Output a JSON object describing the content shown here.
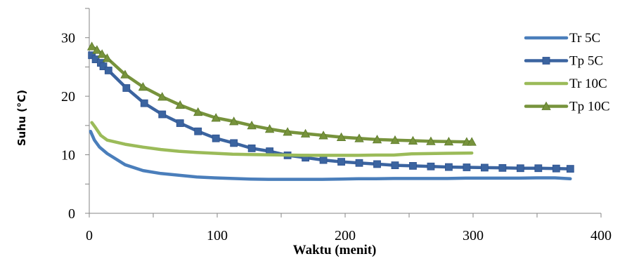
{
  "chart_data": {
    "type": "line",
    "title": "",
    "xlabel": "Waktu (menit)",
    "ylabel": "Suhu (°C)",
    "xlim": [
      0,
      400
    ],
    "ylim": [
      0,
      35
    ],
    "xticks": [
      0,
      100,
      200,
      300,
      400
    ],
    "yticks": [
      0,
      10,
      20,
      30
    ],
    "grid": false,
    "legend_position": "right",
    "series": [
      {
        "name": "Tr 5C",
        "color": "#4a7ebb",
        "marker": "none",
        "x": [
          1,
          4,
          8,
          14,
          28,
          42,
          56,
          70,
          84,
          98,
          112,
          126,
          140,
          154,
          168,
          182,
          196,
          210,
          224,
          238,
          252,
          266,
          280,
          294,
          308,
          322,
          336,
          350,
          364,
          376
        ],
        "y": [
          14.0,
          12.5,
          11.3,
          10.2,
          8.3,
          7.3,
          6.8,
          6.5,
          6.2,
          6.05,
          5.95,
          5.85,
          5.8,
          5.8,
          5.8,
          5.8,
          5.85,
          5.9,
          5.9,
          5.95,
          5.95,
          5.95,
          5.95,
          6.0,
          6.0,
          6.0,
          6.0,
          6.05,
          6.05,
          5.9
        ]
      },
      {
        "name": "Tp 5C",
        "color": "#3b64a0",
        "marker": "square",
        "x": [
          2,
          5,
          9,
          11,
          15,
          29,
          43,
          57,
          71,
          85,
          99,
          113,
          127,
          141,
          155,
          169,
          183,
          197,
          211,
          225,
          239,
          253,
          267,
          281,
          295,
          309,
          323,
          337,
          351,
          365,
          376
        ],
        "y": [
          27.0,
          26.3,
          25.7,
          25.1,
          24.4,
          21.4,
          18.8,
          16.9,
          15.4,
          14.0,
          12.8,
          12.0,
          11.1,
          10.6,
          9.9,
          9.5,
          9.1,
          8.8,
          8.6,
          8.4,
          8.2,
          8.1,
          8.0,
          7.9,
          7.85,
          7.8,
          7.75,
          7.7,
          7.7,
          7.65,
          7.6
        ]
      },
      {
        "name": "Tr 10C",
        "color": "#9bbb59",
        "marker": "none",
        "x": [
          2,
          5,
          9,
          14,
          28,
          42,
          56,
          70,
          84,
          98,
          112,
          126,
          140,
          154,
          168,
          182,
          196,
          210,
          224,
          238,
          252,
          266,
          280,
          299
        ],
        "y": [
          15.5,
          14.6,
          13.3,
          12.5,
          11.8,
          11.3,
          10.9,
          10.6,
          10.4,
          10.25,
          10.1,
          10.05,
          10.0,
          9.95,
          9.9,
          9.9,
          9.9,
          9.9,
          9.95,
          9.95,
          10.15,
          10.2,
          10.25,
          10.3
        ]
      },
      {
        "name": "Tp 10C",
        "color": "#77933c",
        "marker": "triangle",
        "x": [
          2,
          6,
          10,
          14,
          28,
          42,
          57,
          71,
          85,
          99,
          113,
          127,
          141,
          155,
          169,
          183,
          197,
          211,
          225,
          239,
          253,
          267,
          281,
          295,
          299
        ],
        "y": [
          28.5,
          27.9,
          27.2,
          26.5,
          23.7,
          21.6,
          19.9,
          18.5,
          17.3,
          16.3,
          15.7,
          15.0,
          14.4,
          13.9,
          13.6,
          13.3,
          13.0,
          12.8,
          12.6,
          12.5,
          12.4,
          12.3,
          12.25,
          12.2,
          12.2
        ]
      }
    ]
  }
}
